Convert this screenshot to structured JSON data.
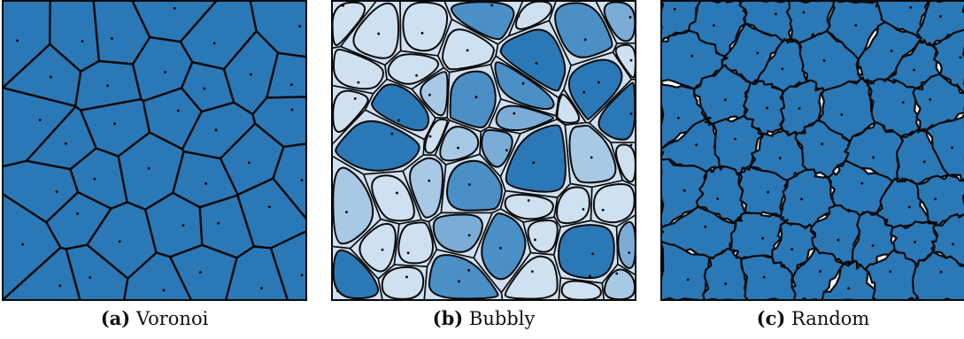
{
  "figure": {
    "panels": [
      {
        "id": "voronoi",
        "tag": "(a)",
        "label": "Voronoi"
      },
      {
        "id": "bubbly",
        "tag": "(b)",
        "label": "Bubbly"
      },
      {
        "id": "random",
        "tag": "(c)",
        "label": "Random"
      }
    ],
    "colors": {
      "cell_fill": "#2b78b6",
      "bubbly_palette": [
        "#2b78b6",
        "#4a8fc6",
        "#7aacd6",
        "#a8c9e6",
        "#cfe0f0"
      ],
      "border": "#0a0a0a",
      "seed_dot": "#000000"
    }
  }
}
